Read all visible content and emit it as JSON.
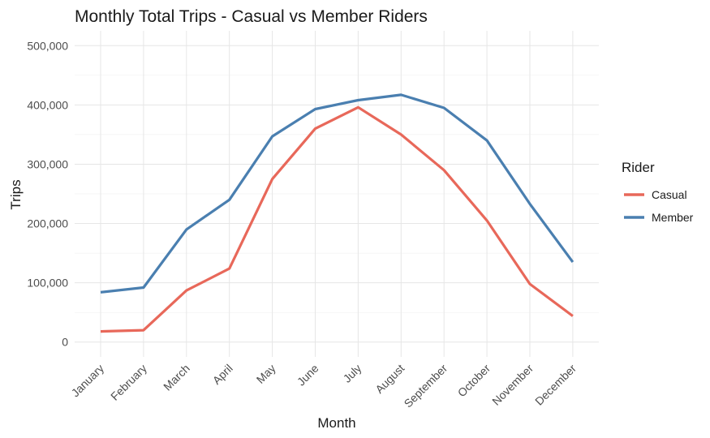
{
  "chart_data": {
    "type": "line",
    "title": "Monthly Total Trips - Casual vs Member Riders",
    "xlabel": "Month",
    "ylabel": "Trips",
    "categories": [
      "January",
      "February",
      "March",
      "April",
      "May",
      "June",
      "July",
      "August",
      "September",
      "October",
      "November",
      "December"
    ],
    "y_ticks": [
      "0",
      "100,000",
      "200,000",
      "300,000",
      "400,000",
      "500,000"
    ],
    "y_tick_values": [
      0,
      100000,
      200000,
      300000,
      400000,
      500000
    ],
    "ylim": [
      -25000,
      525000
    ],
    "grid": true,
    "legend": {
      "title": "Rider",
      "position": "right"
    },
    "series": [
      {
        "name": "Casual",
        "color": "#E8685A",
        "values": [
          18000,
          20000,
          87000,
          124000,
          275000,
          360000,
          396000,
          350000,
          290000,
          205000,
          98000,
          44000
        ]
      },
      {
        "name": "Member",
        "color": "#4A7FB0",
        "values": [
          84000,
          92000,
          190000,
          240000,
          347000,
          393000,
          408000,
          417000,
          395000,
          340000,
          233000,
          135000
        ]
      }
    ]
  }
}
